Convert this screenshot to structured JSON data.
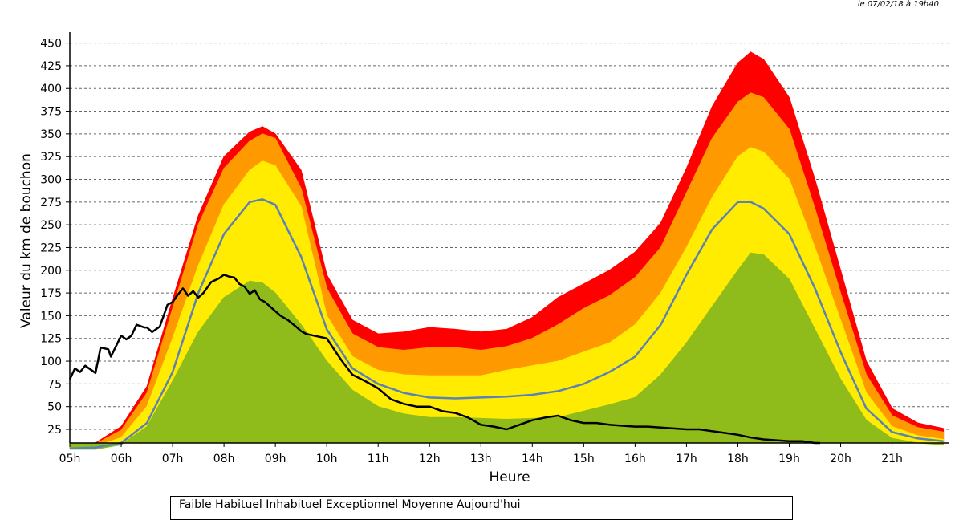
{
  "timestamp": "le 07/02/18 à 19h40",
  "chart_data": {
    "type": "area",
    "title": "",
    "xlabel": "Heure",
    "ylabel": "Valeur du  km de bouchon",
    "x_ticks": [
      "05h",
      "06h",
      "07h",
      "08h",
      "09h",
      "10h",
      "11h",
      "12h",
      "13h",
      "14h",
      "15h",
      "16h",
      "17h",
      "18h",
      "19h",
      "20h",
      "21h"
    ],
    "y_ticks": [
      25,
      50,
      75,
      100,
      125,
      150,
      175,
      200,
      225,
      250,
      275,
      300,
      325,
      350,
      375,
      400,
      425,
      450
    ],
    "xlim": [
      5.0,
      22.1
    ],
    "ylim": [
      10,
      462
    ],
    "grid": true,
    "hours": [
      5.0,
      5.5,
      6.0,
      6.5,
      7.0,
      7.5,
      8.0,
      8.5,
      8.75,
      9.0,
      9.5,
      10.0,
      10.5,
      11.0,
      11.5,
      12.0,
      12.5,
      13.0,
      13.5,
      14.0,
      14.5,
      15.0,
      15.5,
      16.0,
      16.5,
      17.0,
      17.5,
      18.0,
      18.25,
      18.5,
      19.0,
      19.5,
      20.0,
      20.5,
      21.0,
      21.5,
      22.0
    ],
    "bands": [
      {
        "name": "Faible",
        "color": "#8fbc1a",
        "values": [
          3,
          3,
          8,
          28,
          78,
          132,
          170,
          188,
          186,
          175,
          140,
          100,
          68,
          50,
          42,
          38,
          38,
          37,
          36,
          37,
          38,
          45,
          52,
          60,
          85,
          120,
          160,
          200,
          219,
          217,
          190,
          135,
          80,
          35,
          15,
          10,
          8
        ]
      },
      {
        "name": "Habituel",
        "color": "#ffec00",
        "values": [
          5,
          6,
          16,
          50,
          125,
          205,
          272,
          310,
          320,
          315,
          270,
          150,
          105,
          90,
          85,
          84,
          84,
          84,
          90,
          95,
          100,
          110,
          120,
          140,
          175,
          225,
          280,
          325,
          335,
          330,
          300,
          225,
          145,
          65,
          28,
          18,
          14
        ]
      },
      {
        "name": "Inhabituel",
        "color": "#ff9900",
        "values": [
          6,
          9,
          24,
          65,
          158,
          250,
          312,
          342,
          350,
          345,
          290,
          180,
          130,
          115,
          112,
          115,
          115,
          112,
          116,
          125,
          140,
          158,
          172,
          192,
          225,
          285,
          345,
          385,
          395,
          390,
          355,
          268,
          175,
          85,
          40,
          27,
          22
        ]
      },
      {
        "name": "Exceptionnel",
        "color": "#ff0000",
        "values": [
          7,
          10,
          28,
          72,
          168,
          260,
          325,
          352,
          358,
          350,
          310,
          195,
          145,
          130,
          132,
          137,
          135,
          132,
          135,
          148,
          170,
          185,
          200,
          220,
          252,
          312,
          380,
          428,
          440,
          432,
          390,
          300,
          200,
          100,
          48,
          32,
          26
        ]
      }
    ],
    "series": [
      {
        "name": "Moyenne",
        "color": "#5a82b4",
        "x": [
          5.0,
          5.5,
          6.0,
          6.5,
          7.0,
          7.5,
          8.0,
          8.5,
          8.75,
          9.0,
          9.5,
          10.0,
          10.5,
          11.0,
          11.5,
          12.0,
          12.5,
          13.0,
          13.5,
          14.0,
          14.5,
          15.0,
          15.5,
          16.0,
          16.5,
          17.0,
          17.5,
          18.0,
          18.25,
          18.5,
          19.0,
          19.5,
          20.0,
          20.5,
          21.0,
          21.5,
          22.0
        ],
        "values": [
          4,
          5,
          10,
          32,
          88,
          175,
          240,
          275,
          278,
          272,
          215,
          135,
          92,
          75,
          65,
          60,
          59,
          60,
          61,
          63,
          67,
          75,
          88,
          105,
          140,
          195,
          245,
          275,
          275,
          268,
          240,
          180,
          110,
          48,
          22,
          15,
          12
        ]
      },
      {
        "name": "Aujourd'hui",
        "color": "#000000",
        "x": [
          5.0,
          5.1,
          5.2,
          5.3,
          5.5,
          5.6,
          5.75,
          5.8,
          6.0,
          6.1,
          6.2,
          6.3,
          6.45,
          6.5,
          6.6,
          6.75,
          6.9,
          7.0,
          7.1,
          7.2,
          7.3,
          7.4,
          7.5,
          7.6,
          7.75,
          7.9,
          8.0,
          8.1,
          8.2,
          8.3,
          8.4,
          8.5,
          8.6,
          8.7,
          8.8,
          9.0,
          9.1,
          9.25,
          9.4,
          9.5,
          9.6,
          9.75,
          10.0,
          10.2,
          10.3,
          10.5,
          10.75,
          11.0,
          11.25,
          11.5,
          11.75,
          12.0,
          12.25,
          12.5,
          12.75,
          13.0,
          13.25,
          13.5,
          13.75,
          14.0,
          14.25,
          14.5,
          14.75,
          15.0,
          15.25,
          15.5,
          15.75,
          16.0,
          16.25,
          16.5,
          16.75,
          17.0,
          17.25,
          17.5,
          17.75,
          18.0,
          18.25,
          18.5,
          18.75,
          19.0,
          19.25,
          19.5,
          19.6
        ],
        "values": [
          80,
          92,
          88,
          95,
          87,
          115,
          113,
          105,
          128,
          124,
          128,
          140,
          137,
          137,
          132,
          138,
          162,
          165,
          173,
          180,
          172,
          177,
          170,
          175,
          187,
          191,
          195,
          193,
          192,
          185,
          182,
          174,
          178,
          168,
          165,
          155,
          150,
          145,
          138,
          133,
          130,
          128,
          125,
          108,
          100,
          85,
          78,
          70,
          58,
          53,
          50,
          50,
          45,
          43,
          38,
          30,
          28,
          25,
          30,
          35,
          38,
          40,
          35,
          32,
          32,
          30,
          29,
          28,
          28,
          27,
          26,
          25,
          25,
          23,
          21,
          19,
          16,
          14,
          13,
          12,
          12,
          10,
          10
        ]
      }
    ],
    "legend": {
      "placement": "bottom",
      "text": "Faible Habituel Inhabituel Exceptionnel Moyenne Aujourd'hui"
    }
  }
}
